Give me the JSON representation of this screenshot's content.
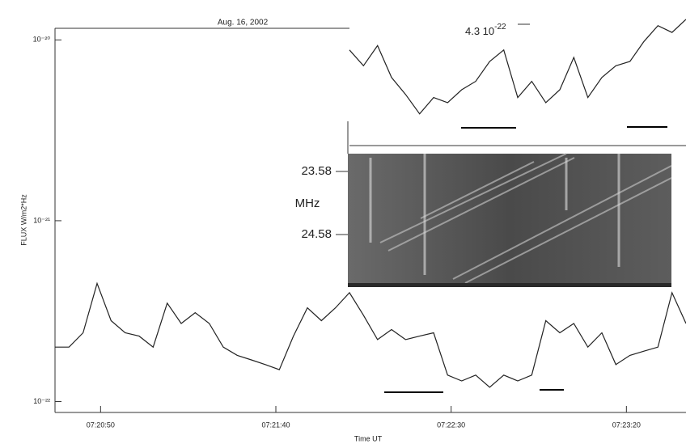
{
  "chart_data": {
    "type": "line",
    "title": "Aug. 16, 2002",
    "ylabel": "FLUX  W/m2*Hz",
    "xlabel": "Time UT",
    "annotation": {
      "base": "4.3 10",
      "exponent": "-22"
    },
    "inset": {
      "ticks": [
        "23.58",
        "24.58"
      ],
      "unit": "MHz"
    },
    "log_y": true,
    "x": [
      "07:20:37",
      "07:20:41",
      "07:20:45",
      "07:20:49",
      "07:20:53",
      "07:20:57",
      "07:21:01",
      "07:21:05",
      "07:21:09",
      "07:21:13",
      "07:21:17",
      "07:21:21",
      "07:21:25",
      "07:21:29",
      "07:21:33",
      "07:21:37",
      "07:21:41",
      "07:21:45",
      "07:21:49",
      "07:21:53",
      "07:21:57",
      "07:22:01",
      "07:22:05",
      "07:22:09",
      "07:22:13",
      "07:22:17",
      "07:22:21",
      "07:22:25",
      "07:22:29",
      "07:22:33",
      "07:22:37",
      "07:22:41",
      "07:22:45",
      "07:22:49",
      "07:22:53",
      "07:22:57",
      "07:23:01",
      "07:23:05",
      "07:23:09",
      "07:23:13",
      "07:23:17",
      "07:23:21",
      "07:23:25",
      "07:23:29",
      "07:23:33",
      "07:23:37"
    ],
    "series": [
      {
        "color": "#222222",
        "values": [
          2e-22,
          2e-22,
          2.4e-22,
          4.5e-22,
          2.8e-22,
          2.4e-22,
          2.3e-22,
          2e-22,
          3.5e-22,
          2.7e-22,
          3.1e-22,
          2.7e-22,
          2e-22,
          1.8e-22,
          1.7e-22,
          1.6e-22,
          1.5e-22,
          2.3e-22,
          3.3e-22,
          2.8e-22,
          3.3e-22,
          4e-22,
          3e-22,
          2.2e-22,
          2.5e-22,
          2.2e-22,
          2.3e-22,
          2.4e-22,
          1.4e-22,
          1.3e-22,
          1.4e-22,
          1.2e-22,
          1.4e-22,
          1.3e-22,
          1.4e-22,
          2.8e-22,
          2.4e-22,
          2.7e-22,
          2e-22,
          2.4e-22,
          1.6e-22,
          1.8e-22,
          1.9e-22,
          2e-22,
          4e-22,
          2.7e-22
        ]
      },
      {
        "color": "#222222",
        "values": [
          null,
          null,
          null,
          null,
          null,
          null,
          null,
          null,
          null,
          null,
          null,
          null,
          null,
          null,
          null,
          null,
          null,
          null,
          null,
          null,
          null,
          8.8e-21,
          7.2e-21,
          9.3e-21,
          6.2e-21,
          5e-21,
          3.9e-21,
          4.8e-21,
          4.5e-21,
          5.3e-21,
          5.9e-21,
          7.6e-21,
          8.8e-21,
          4.8e-21,
          5.9e-21,
          4.5e-21,
          5.3e-21,
          8e-21,
          4.8e-21,
          6.2e-21,
          7.2e-21,
          7.6e-21,
          9.8e-21,
          1.2e-20,
          1.1e-20,
          1.3e-20
        ]
      }
    ],
    "xlim": [
      "07:20:37",
      "07:23:37"
    ],
    "xticks": [
      "07:20:50",
      "07:21:40",
      "07:22:30",
      "07:23:20"
    ],
    "ylim": [
      8.7e-23,
      1.5e-20
    ],
    "yticks": [
      {
        "value": 1e-22,
        "label": "10⁻²²"
      },
      {
        "value": 1e-21,
        "label": "10⁻²¹"
      },
      {
        "value": 1e-20,
        "label": "10⁻²⁰"
      }
    ]
  }
}
